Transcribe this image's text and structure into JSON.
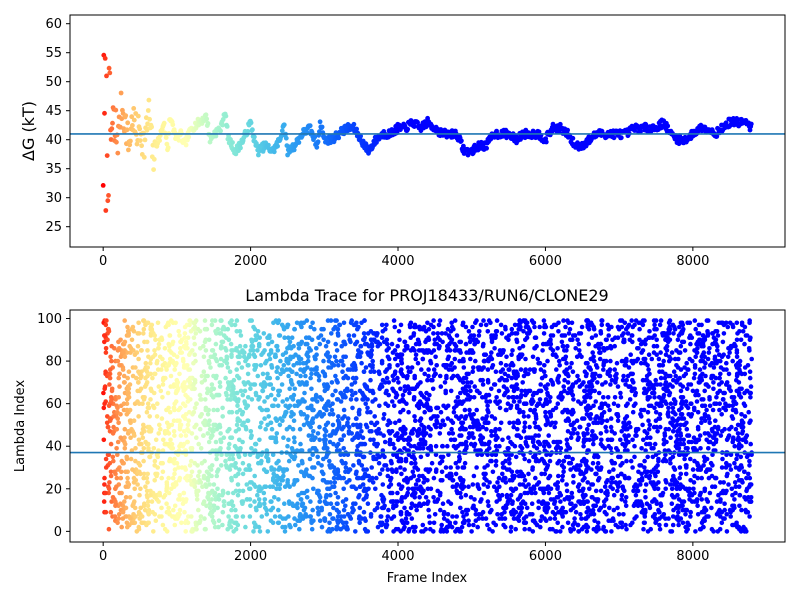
{
  "chart_data": [
    {
      "type": "scatter",
      "title": "",
      "xlabel": "",
      "ylabel": "ΔG (kT)",
      "xlim": [
        -450,
        9250
      ],
      "ylim": [
        21.5,
        61.5
      ],
      "xticks": [
        0,
        2000,
        4000,
        6000,
        8000
      ],
      "xtick_labels": [
        "0",
        "2000",
        "4000",
        "6000",
        "8000"
      ],
      "yticks": [
        25,
        30,
        35,
        40,
        45,
        50,
        55,
        60
      ],
      "ytick_labels": [
        "25",
        "30",
        "35",
        "40",
        "45",
        "50",
        "55",
        "60"
      ],
      "hline": 41.0,
      "hline_color": "#1f77b4",
      "colormap": "rainbow (reversed with frame index: early frames red, late frames violet)",
      "grid": false,
      "series": [
        {
          "description": "ΔG estimate per frame",
          "x": [
            0,
            20,
            40,
            60,
            80,
            100,
            130,
            160,
            200,
            250,
            300,
            350,
            400,
            450,
            500,
            560,
            620,
            680,
            700,
            760,
            820,
            880,
            900,
            1000,
            1050,
            1100,
            1200,
            1300,
            1400,
            1450,
            1500,
            1600,
            1650,
            1700,
            1800,
            1900,
            2000,
            2050,
            2100,
            2200,
            2300,
            2400,
            2450,
            2500,
            2600,
            2700,
            2800,
            2900,
            2950,
            3000,
            3100,
            3200,
            3300,
            3400,
            3500,
            3600,
            3700,
            3800,
            3900,
            4000,
            4100,
            4200,
            4300,
            4400,
            4500,
            4600,
            4700,
            4800,
            4900,
            5000,
            5100,
            5200,
            5300,
            5400,
            5500,
            5600,
            5700,
            5800,
            5900,
            6000,
            6100,
            6200,
            6300,
            6400,
            6500,
            6600,
            6700,
            6800,
            6900,
            7000,
            7100,
            7200,
            7300,
            7400,
            7500,
            7600,
            7700,
            7800,
            7900,
            8000,
            8100,
            8200,
            8300,
            8400,
            8500,
            8600,
            8700,
            8800
          ],
          "y": [
            47,
            30,
            55,
            38,
            52,
            44,
            36,
            48,
            40,
            46,
            43,
            39,
            44,
            41,
            42,
            39,
            45,
            36,
            39,
            40,
            43,
            38,
            44,
            40,
            41,
            39,
            42,
            43,
            44,
            40,
            41,
            42,
            45,
            40,
            38,
            40,
            43,
            40,
            38,
            39,
            38,
            40,
            43,
            38,
            39,
            41,
            42,
            39,
            43,
            40,
            40,
            41,
            42,
            42,
            40,
            38,
            40,
            41,
            41,
            42,
            42,
            43,
            42,
            43,
            42,
            41,
            41,
            41,
            38,
            38,
            39,
            39,
            41,
            41,
            41,
            40,
            41,
            41,
            41,
            40,
            42,
            42,
            41,
            39,
            39,
            40,
            41,
            41,
            41,
            41,
            41,
            42,
            42,
            42,
            42,
            43,
            41,
            40,
            40,
            41,
            42,
            42,
            41,
            42,
            43,
            43,
            43,
            42
          ]
        }
      ]
    },
    {
      "type": "scatter",
      "title": "Lambda Trace for PROJ18433/RUN6/CLONE29",
      "xlabel": "Frame Index",
      "ylabel": "Lambda Index",
      "xlim": [
        -450,
        9250
      ],
      "ylim": [
        -5,
        104
      ],
      "xticks": [
        0,
        2000,
        4000,
        6000,
        8000
      ],
      "xtick_labels": [
        "0",
        "2000",
        "4000",
        "6000",
        "8000"
      ],
      "yticks": [
        0,
        20,
        40,
        60,
        80,
        100
      ],
      "ytick_labels": [
        "0",
        "20",
        "40",
        "60",
        "80",
        "100"
      ],
      "hline": 37,
      "hline_color": "#1f77b4",
      "colormap": "rainbow (reversed with frame index: early frames red, late frames violet)",
      "grid": false,
      "series": [
        {
          "description": "Lambda index visited per frame; dense random sampling across 0–99 for all frames 0–8800",
          "x_range": [
            0,
            8800
          ],
          "y_range": [
            0,
            99
          ]
        }
      ]
    }
  ]
}
